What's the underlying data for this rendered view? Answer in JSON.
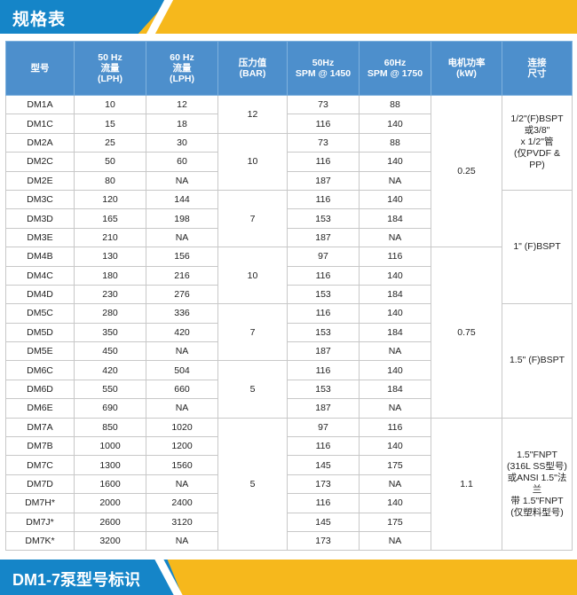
{
  "header": {
    "title": "规格表"
  },
  "footer": {
    "title": "DM1-7泵型号标识"
  },
  "table": {
    "columns": [
      [
        "型号"
      ],
      [
        "50 Hz",
        "流量",
        "(LPH)"
      ],
      [
        "60 Hz",
        "流量",
        "(LPH)"
      ],
      [
        "压力值",
        "(BAR)"
      ],
      [
        "50Hz",
        "SPM @ 1450"
      ],
      [
        "60Hz",
        "SPM @ 1750"
      ],
      [
        "电机功率",
        "(kW)"
      ],
      [
        "连接",
        "尺寸"
      ]
    ],
    "rows": [
      {
        "model": "DM1A",
        "f50": "10",
        "f60": "12",
        "spm50": "73",
        "spm60": "88"
      },
      {
        "model": "DM1C",
        "f50": "15",
        "f60": "18",
        "spm50": "116",
        "spm60": "140"
      },
      {
        "model": "DM2A",
        "f50": "25",
        "f60": "30",
        "spm50": "73",
        "spm60": "88"
      },
      {
        "model": "DM2C",
        "f50": "50",
        "f60": "60",
        "spm50": "116",
        "spm60": "140"
      },
      {
        "model": "DM2E",
        "f50": "80",
        "f60": "NA",
        "spm50": "187",
        "spm60": "NA"
      },
      {
        "model": "DM3C",
        "f50": "120",
        "f60": "144",
        "spm50": "116",
        "spm60": "140"
      },
      {
        "model": "DM3D",
        "f50": "165",
        "f60": "198",
        "spm50": "153",
        "spm60": "184"
      },
      {
        "model": "DM3E",
        "f50": "210",
        "f60": "NA",
        "spm50": "187",
        "spm60": "NA"
      },
      {
        "model": "DM4B",
        "f50": "130",
        "f60": "156",
        "spm50": "97",
        "spm60": "116"
      },
      {
        "model": "DM4C",
        "f50": "180",
        "f60": "216",
        "spm50": "116",
        "spm60": "140"
      },
      {
        "model": "DM4D",
        "f50": "230",
        "f60": "276",
        "spm50": "153",
        "spm60": "184"
      },
      {
        "model": "DM5C",
        "f50": "280",
        "f60": "336",
        "spm50": "116",
        "spm60": "140"
      },
      {
        "model": "DM5D",
        "f50": "350",
        "f60": "420",
        "spm50": "153",
        "spm60": "184"
      },
      {
        "model": "DM5E",
        "f50": "450",
        "f60": "NA",
        "spm50": "187",
        "spm60": "NA"
      },
      {
        "model": "DM6C",
        "f50": "420",
        "f60": "504",
        "spm50": "116",
        "spm60": "140"
      },
      {
        "model": "DM6D",
        "f50": "550",
        "f60": "660",
        "spm50": "153",
        "spm60": "184"
      },
      {
        "model": "DM6E",
        "f50": "690",
        "f60": "NA",
        "spm50": "187",
        "spm60": "NA"
      },
      {
        "model": "DM7A",
        "f50": "850",
        "f60": "1020",
        "spm50": "97",
        "spm60": "116"
      },
      {
        "model": "DM7B",
        "f50": "1000",
        "f60": "1200",
        "spm50": "116",
        "spm60": "140"
      },
      {
        "model": "DM7C",
        "f50": "1300",
        "f60": "1560",
        "spm50": "145",
        "spm60": "175"
      },
      {
        "model": "DM7D",
        "f50": "1600",
        "f60": "NA",
        "spm50": "173",
        "spm60": "NA"
      },
      {
        "model": "DM7H*",
        "f50": "2000",
        "f60": "2400",
        "spm50": "116",
        "spm60": "140"
      },
      {
        "model": "DM7J*",
        "f50": "2600",
        "f60": "3120",
        "spm50": "145",
        "spm60": "175"
      },
      {
        "model": "DM7K*",
        "f50": "3200",
        "f60": "NA",
        "spm50": "173",
        "spm60": "NA"
      }
    ],
    "pressure": [
      {
        "start": 0,
        "span": 2,
        "value": "12"
      },
      {
        "start": 2,
        "span": 3,
        "value": "10"
      },
      {
        "start": 5,
        "span": 3,
        "value": "7"
      },
      {
        "start": 8,
        "span": 3,
        "value": "10"
      },
      {
        "start": 11,
        "span": 3,
        "value": "7"
      },
      {
        "start": 14,
        "span": 3,
        "value": "5"
      },
      {
        "start": 17,
        "span": 7,
        "value": "5"
      }
    ],
    "power": [
      {
        "start": 0,
        "span": 8,
        "value": "0.25"
      },
      {
        "start": 8,
        "span": 9,
        "value": "0.75"
      },
      {
        "start": 17,
        "span": 7,
        "value": "1.1"
      }
    ],
    "connection": [
      {
        "start": 0,
        "span": 5,
        "lines": [
          "1/2\"(F)BSPT",
          "或3/8\"",
          "x 1/2\"管",
          "(仅PVDF & PP)"
        ]
      },
      {
        "start": 5,
        "span": 6,
        "lines": [
          "1\" (F)BSPT"
        ]
      },
      {
        "start": 11,
        "span": 6,
        "lines": [
          "1.5\" (F)BSPT"
        ]
      },
      {
        "start": 17,
        "span": 7,
        "lines": [
          "1.5\"FNPT",
          "(316L SS型号)",
          "或ANSI 1.5\"法兰",
          "带 1.5\"FNPT",
          "(仅塑料型号)"
        ]
      }
    ]
  }
}
